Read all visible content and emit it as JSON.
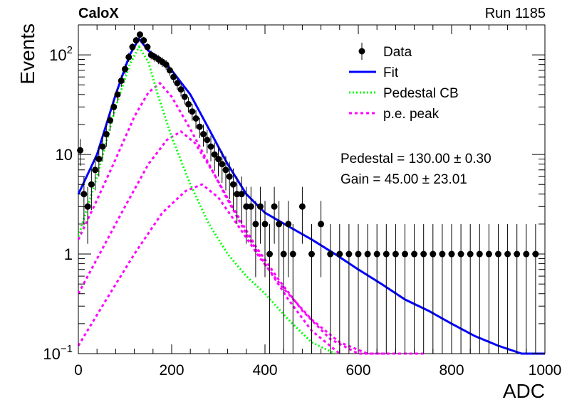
{
  "header": {
    "experiment": "CaloX",
    "run": "Run 1185"
  },
  "chart_data": {
    "type": "scatter",
    "xlabel": "ADC",
    "ylabel": "Events",
    "xlim": [
      0,
      1000
    ],
    "ylim": [
      0.1,
      200
    ],
    "yscale": "log",
    "x_ticks": [
      {
        "value": 0,
        "label": "0"
      },
      {
        "value": 200,
        "label": "200"
      },
      {
        "value": 400,
        "label": "400"
      },
      {
        "value": 600,
        "label": "600"
      },
      {
        "value": 800,
        "label": "800"
      },
      {
        "value": 1000,
        "label": "1000"
      }
    ],
    "y_ticks": [
      {
        "value": 0.1,
        "base": "10",
        "exp": "−1"
      },
      {
        "value": 1,
        "base": "1",
        "exp": ""
      },
      {
        "value": 10,
        "base": "10",
        "exp": ""
      },
      {
        "value": 100,
        "base": "10",
        "exp": "2"
      }
    ],
    "legend": {
      "placement": "top-right",
      "entries": [
        {
          "label": "Data",
          "style": "marker",
          "color": "#000000"
        },
        {
          "label": "Fit",
          "style": "solid",
          "color": "#0000ff"
        },
        {
          "label": "Pedestal CB",
          "style": "dotted",
          "color": "#00ff00"
        },
        {
          "label": "p.e. peak",
          "style": "dashed",
          "color": "#ff00ff"
        }
      ]
    },
    "annotations": [
      {
        "text": "Pedestal = 130.00 ± 0.30"
      },
      {
        "text": "Gain = 45.00 ± 23.01"
      }
    ],
    "data": {
      "name": "Data",
      "color": "#000000",
      "x": [
        4,
        12,
        20,
        28,
        36,
        44,
        52,
        60,
        68,
        76,
        84,
        92,
        100,
        108,
        116,
        124,
        132,
        140,
        148,
        156,
        164,
        172,
        180,
        188,
        196,
        204,
        212,
        220,
        228,
        236,
        244,
        252,
        260,
        268,
        276,
        284,
        292,
        300,
        308,
        316,
        324,
        332,
        340,
        350,
        360,
        370,
        380,
        390,
        400,
        410,
        420,
        430,
        440,
        450,
        460,
        480,
        500,
        520,
        540,
        560,
        580,
        600,
        620,
        640,
        660,
        680,
        700,
        720,
        740,
        760,
        780,
        800,
        820,
        840,
        860,
        880,
        900,
        920,
        940,
        960,
        980
      ],
      "y": [
        11,
        4,
        3,
        5,
        7,
        9,
        12,
        16,
        22,
        30,
        40,
        55,
        72,
        95,
        120,
        140,
        160,
        140,
        120,
        100,
        95,
        90,
        85,
        80,
        70,
        60,
        52,
        45,
        38,
        32,
        27,
        23,
        19,
        16,
        14,
        12,
        10,
        9,
        8,
        7,
        6,
        5,
        4,
        4,
        3,
        3,
        2,
        3,
        2,
        1,
        3,
        2,
        1,
        2,
        1,
        3,
        1,
        2,
        1,
        1,
        1,
        1,
        1,
        1,
        1,
        1,
        1,
        1,
        1,
        1,
        1,
        1,
        1,
        1,
        1,
        1,
        1,
        1,
        1,
        1,
        1
      ]
    },
    "fit": {
      "name": "Fit",
      "color": "#0000ff",
      "x": [
        0,
        40,
        80,
        110,
        130,
        150,
        170,
        200,
        240,
        280,
        320,
        360,
        400,
        450,
        500,
        550,
        600,
        650,
        700,
        750,
        800,
        850,
        900,
        950,
        1000
      ],
      "y": [
        4,
        10,
        40,
        100,
        145,
        110,
        95,
        70,
        40,
        18,
        8,
        4,
        2.6,
        1.9,
        1.4,
        1.0,
        0.7,
        0.5,
        0.35,
        0.27,
        0.2,
        0.15,
        0.12,
        0.09,
        0.07
      ]
    },
    "pedestal_cb": {
      "name": "Pedestal CB",
      "color": "#00ff00",
      "x": [
        0,
        40,
        80,
        110,
        130,
        150,
        170,
        200,
        240,
        280,
        320,
        360,
        400,
        450,
        500,
        550
      ],
      "y": [
        1.5,
        6,
        30,
        80,
        120,
        85,
        40,
        15,
        5,
        2,
        1.0,
        0.6,
        0.4,
        0.22,
        0.13,
        0.09
      ]
    },
    "pe_peaks": [
      {
        "name": "p.e. peak",
        "color": "#ff00ff",
        "x": [
          0,
          40,
          80,
          120,
          150,
          175,
          200,
          240,
          280,
          320,
          360,
          400,
          450,
          500,
          560
        ],
        "y": [
          1.4,
          3.5,
          9,
          24,
          42,
          52,
          38,
          18,
          8,
          3.5,
          1.6,
          0.8,
          0.35,
          0.17,
          0.09
        ]
      },
      {
        "name": "p.e. peak",
        "color": "#ff00ff",
        "x": [
          0,
          50,
          100,
          150,
          190,
          220,
          250,
          290,
          330,
          380,
          430,
          480,
          540,
          600,
          660
        ],
        "y": [
          0.4,
          1.1,
          3,
          8,
          14,
          17,
          13,
          6.5,
          3,
          1.2,
          0.55,
          0.27,
          0.14,
          0.1,
          0.09
        ]
      },
      {
        "name": "p.e. peak",
        "color": "#ff00ff",
        "x": [
          0,
          60,
          120,
          180,
          230,
          265,
          300,
          340,
          390,
          440,
          500,
          560,
          620,
          680,
          740
        ],
        "y": [
          0.12,
          0.35,
          1.0,
          2.6,
          4.3,
          5,
          3.7,
          2.0,
          0.9,
          0.45,
          0.22,
          0.13,
          0.1,
          0.09,
          0.09
        ]
      }
    ]
  }
}
